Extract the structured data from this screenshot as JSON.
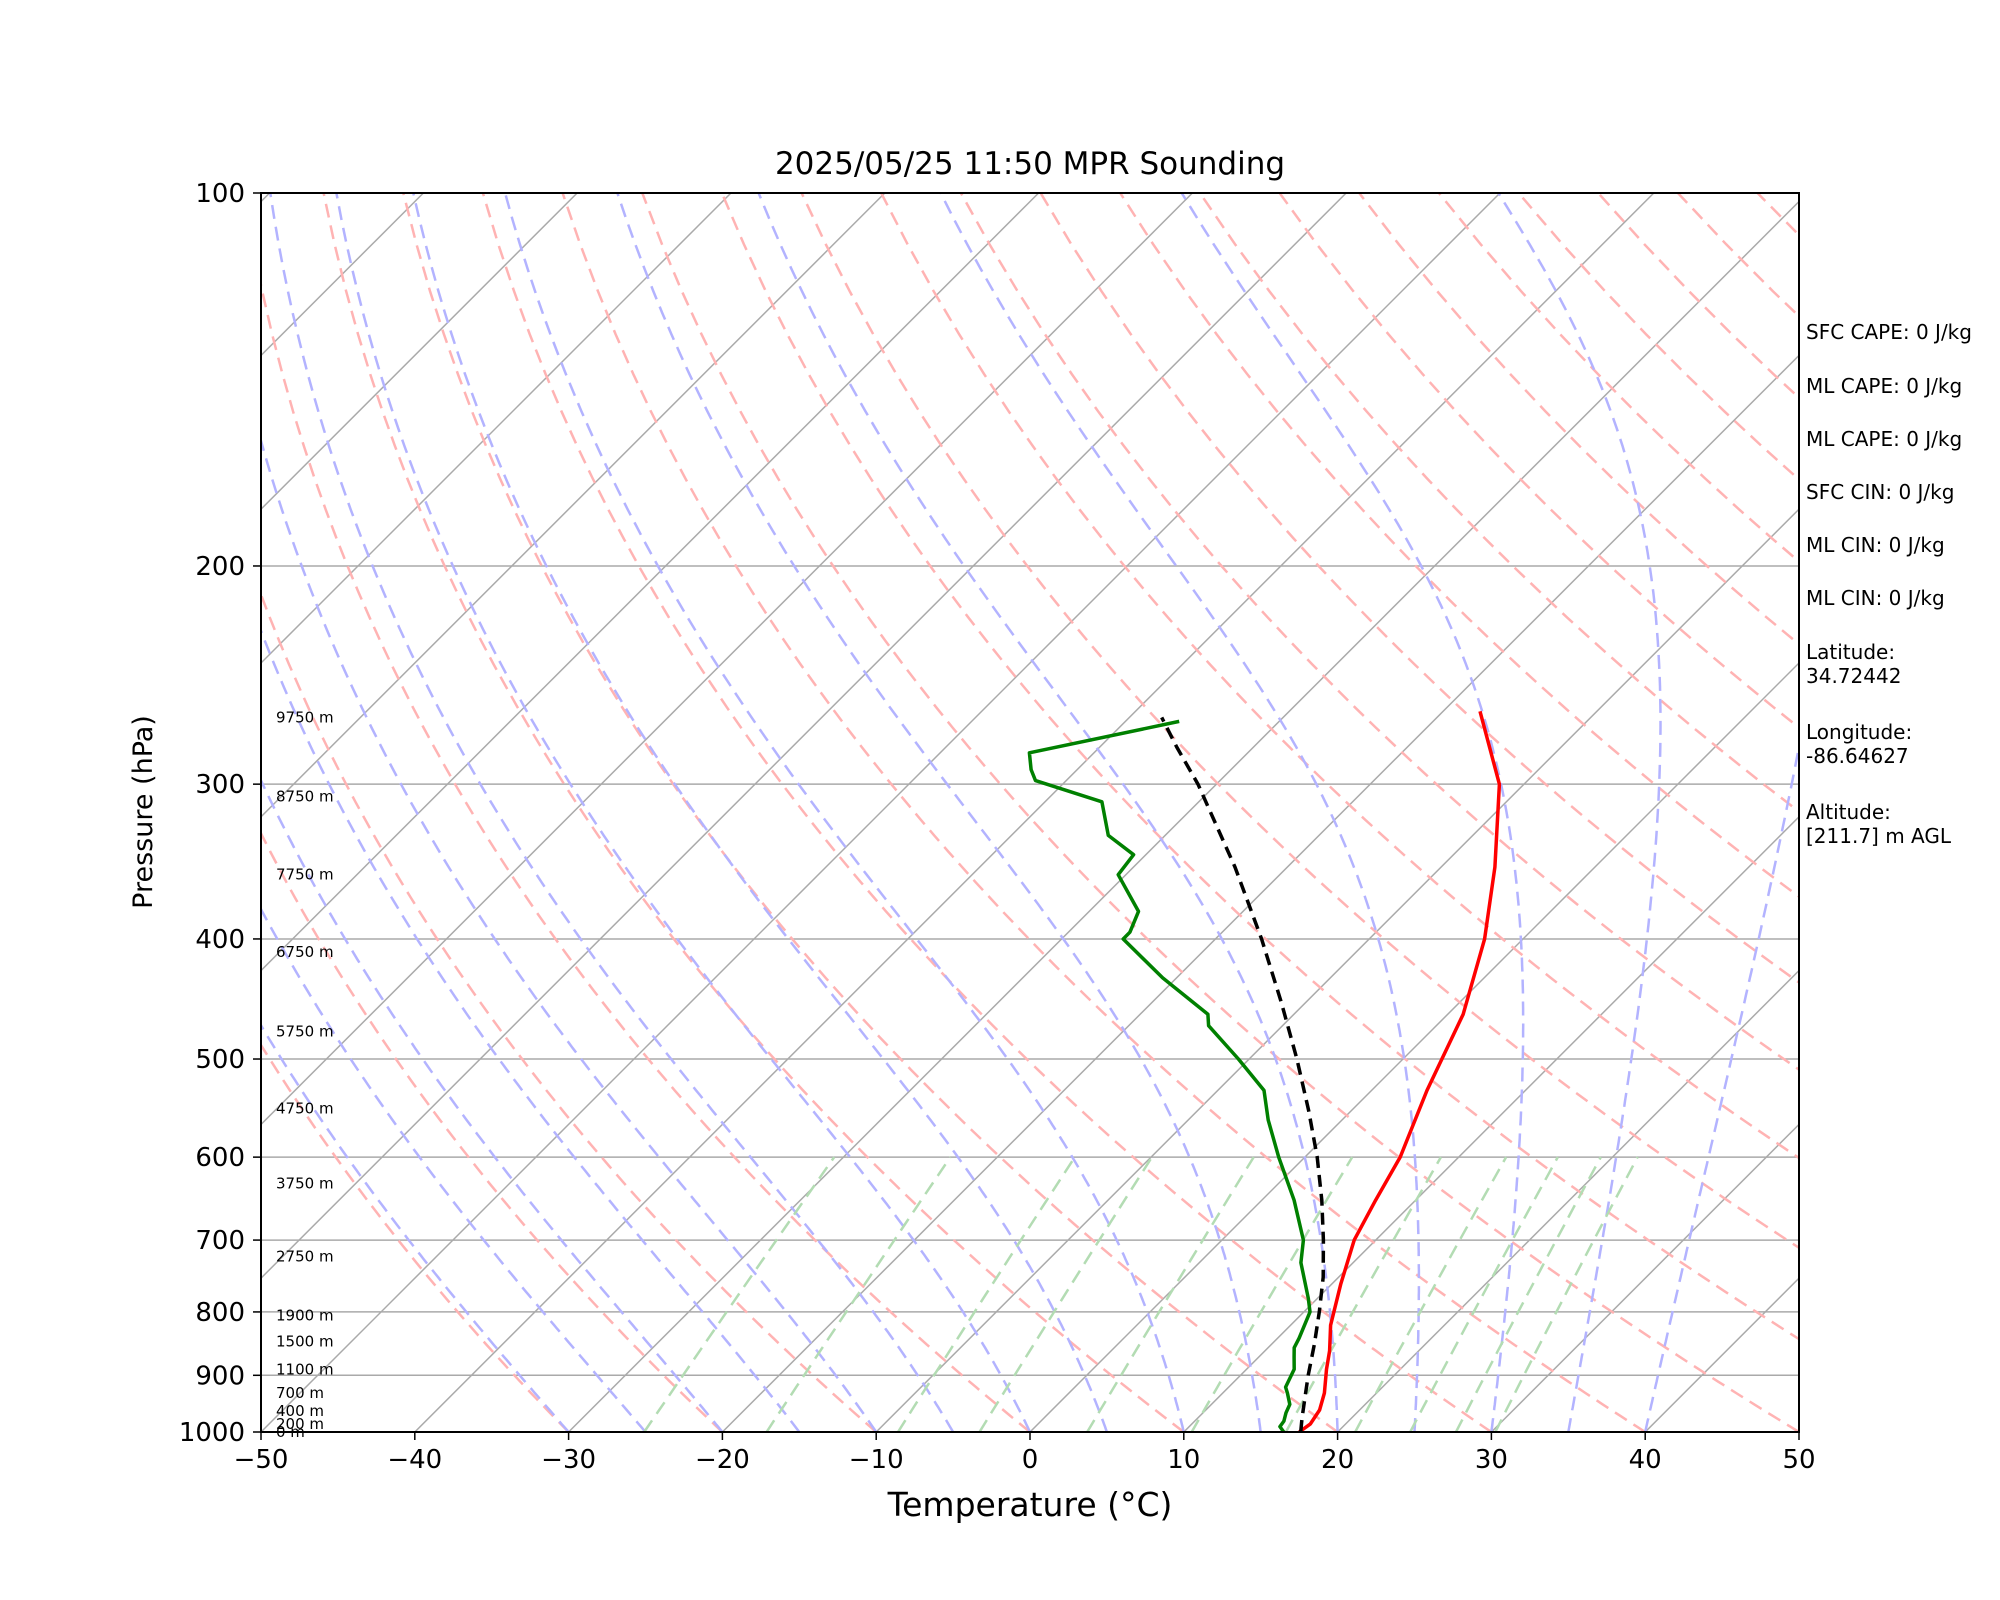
{
  "chart_data": {
    "type": "line",
    "chart_kind": "skew-T log-p sounding",
    "title": "2025/05/25 11:50 MPR Sounding",
    "xlabel": "Temperature (°C)",
    "ylabel": "Pressure (hPa)",
    "xlim": [
      -50,
      50
    ],
    "ylim": [
      1000,
      100
    ],
    "y_scale": "log",
    "x_ticks": [
      "−50",
      "−40",
      "−30",
      "−20",
      "−10",
      "0",
      "10",
      "20",
      "30",
      "40",
      "50"
    ],
    "y_ticks": [
      "100",
      "200",
      "300",
      "400",
      "500",
      "600",
      "700",
      "800",
      "900",
      "1000"
    ],
    "x_tick_values": [
      -50,
      -40,
      -30,
      -20,
      -10,
      0,
      10,
      20,
      30,
      40,
      50
    ],
    "y_tick_values": [
      100,
      200,
      300,
      400,
      500,
      600,
      700,
      800,
      900,
      1000
    ],
    "grid": true,
    "height_labels": [
      {
        "text": "0 m",
        "p": 1000
      },
      {
        "text": "200 m",
        "p": 985
      },
      {
        "text": "400 m",
        "p": 962
      },
      {
        "text": "700 m",
        "p": 930
      },
      {
        "text": "1100 m",
        "p": 890
      },
      {
        "text": "1500 m",
        "p": 845
      },
      {
        "text": "1900 m",
        "p": 805
      },
      {
        "text": "2750 m",
        "p": 722
      },
      {
        "text": "3750 m",
        "p": 630
      },
      {
        "text": "4750 m",
        "p": 548
      },
      {
        "text": "5750 m",
        "p": 475
      },
      {
        "text": "6750 m",
        "p": 410
      },
      {
        "text": "7750 m",
        "p": 355
      },
      {
        "text": "8750 m",
        "p": 307
      },
      {
        "text": "9750 m",
        "p": 265
      }
    ],
    "series": [
      {
        "key": "temperature",
        "color": "#ff0000",
        "points": [
          [
            17.5,
            1000
          ],
          [
            17.7,
            985
          ],
          [
            17.4,
            960
          ],
          [
            16.6,
            930
          ],
          [
            15.2,
            890
          ],
          [
            14.2,
            860
          ],
          [
            12.6,
            820
          ],
          [
            10.6,
            760
          ],
          [
            8.6,
            700
          ],
          [
            7.4,
            650
          ],
          [
            6.2,
            600
          ],
          [
            3.6,
            530
          ],
          [
            1.0,
            460
          ],
          [
            -2.5,
            400
          ],
          [
            -6.5,
            350
          ],
          [
            -11.6,
            300
          ],
          [
            -17.6,
            262
          ]
        ]
      },
      {
        "key": "dewpoint",
        "color": "#008000",
        "points": [
          [
            16.5,
            1000
          ],
          [
            15.9,
            990
          ],
          [
            15.8,
            980
          ],
          [
            15.4,
            965
          ],
          [
            15.1,
            950
          ],
          [
            14.2,
            930
          ],
          [
            13.7,
            920
          ],
          [
            13.1,
            890
          ],
          [
            12.3,
            870
          ],
          [
            11.7,
            855
          ],
          [
            11.4,
            840
          ],
          [
            10.4,
            800
          ],
          [
            9.4,
            780
          ],
          [
            6.6,
            730
          ],
          [
            5.3,
            700
          ],
          [
            2.1,
            650
          ],
          [
            -1.7,
            600
          ],
          [
            -4.8,
            560
          ],
          [
            -7.0,
            530
          ],
          [
            -10.7,
            500
          ],
          [
            -14.8,
            470
          ],
          [
            -15.6,
            460
          ],
          [
            -20.9,
            430
          ],
          [
            -26.0,
            400
          ],
          [
            -26.0,
            395
          ],
          [
            -26.8,
            380
          ],
          [
            -30.5,
            355
          ],
          [
            -30.8,
            342
          ],
          [
            -33.7,
            330
          ],
          [
            -36.3,
            310
          ],
          [
            -42.0,
            298
          ],
          [
            -43.0,
            292
          ],
          [
            -44.2,
            283
          ],
          [
            -36.5,
            267
          ]
        ]
      },
      {
        "key": "parcel",
        "color": "#000000",
        "dashed": true,
        "points": [
          [
            17.6,
            1000
          ],
          [
            16.8,
            975
          ],
          [
            15.7,
            940
          ],
          [
            14.4,
            900
          ],
          [
            12.8,
            850
          ],
          [
            11.0,
            800
          ],
          [
            9.0,
            750
          ],
          [
            6.6,
            700
          ],
          [
            3.9,
            650
          ],
          [
            0.8,
            600
          ],
          [
            -2.8,
            550
          ],
          [
            -6.9,
            500
          ],
          [
            -11.6,
            450
          ],
          [
            -17.0,
            400
          ],
          [
            -23.4,
            350
          ],
          [
            -31.2,
            300
          ],
          [
            -35.0,
            280
          ],
          [
            -37.9,
            265
          ]
        ]
      }
    ]
  },
  "info_panel": [
    "SFC CAPE: 0 J/kg",
    "ML CAPE: 0 J/kg",
    "ML CAPE: 0 J/kg",
    "SFC CIN: 0 J/kg",
    "ML CIN: 0 J/kg",
    "ML CIN: 0 J/kg",
    "Latitude:\n34.72442",
    "Longitude:\n-86.64627",
    "Altitude:\n[211.7] m AGL"
  ],
  "colors": {
    "isotherm": "#aaaaaa",
    "dry_adiabat": "#ffb3b3",
    "moist_adiabat": "#b3b3ff",
    "mixing_ratio": "#b3dcb3"
  }
}
